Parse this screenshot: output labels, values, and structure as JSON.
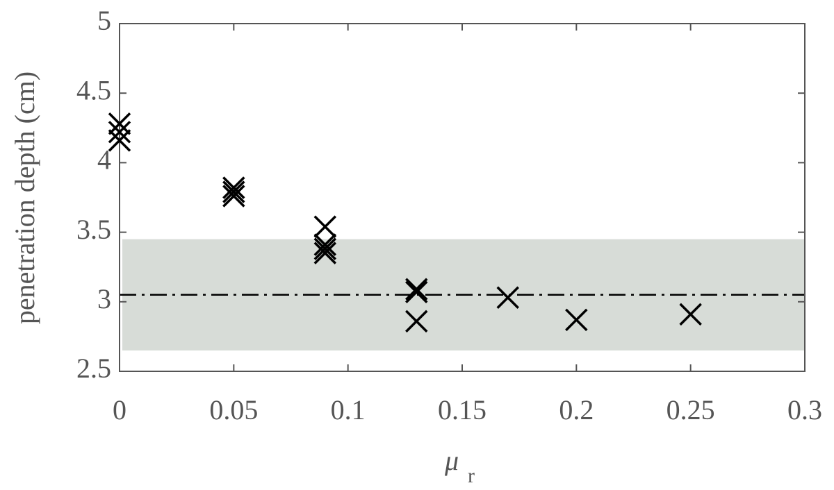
{
  "chart_data": {
    "type": "scatter",
    "ylabel": "penetration depth (cm)",
    "xlabel": "μ",
    "xlabel_subscript": "r",
    "xlim": [
      0,
      0.3
    ],
    "xticks": [
      0,
      0.05,
      0.1,
      0.15,
      0.2,
      0.25,
      0.3
    ],
    "ylim": [
      2.5,
      5
    ],
    "yticks": [
      2.5,
      3,
      3.5,
      4,
      4.5,
      5
    ],
    "grid": false,
    "band": {
      "ymin": 2.65,
      "ymax": 3.45,
      "color": "#d7dcd7"
    },
    "reference_line": {
      "y": 3.05,
      "color": "#000000"
    },
    "series": [
      {
        "color": "#000000",
        "marker": "x",
        "x": [
          0,
          0,
          0,
          0.05,
          0.05,
          0.05,
          0.09,
          0.09,
          0.09,
          0.09,
          0.13,
          0.13,
          0.13,
          0.17,
          0.2,
          0.25
        ],
        "values": [
          4.28,
          4.22,
          4.16,
          3.82,
          3.79,
          3.76,
          3.54,
          3.41,
          3.38,
          3.35,
          3.09,
          3.07,
          2.86,
          3.03,
          2.87,
          2.91
        ]
      }
    ]
  }
}
